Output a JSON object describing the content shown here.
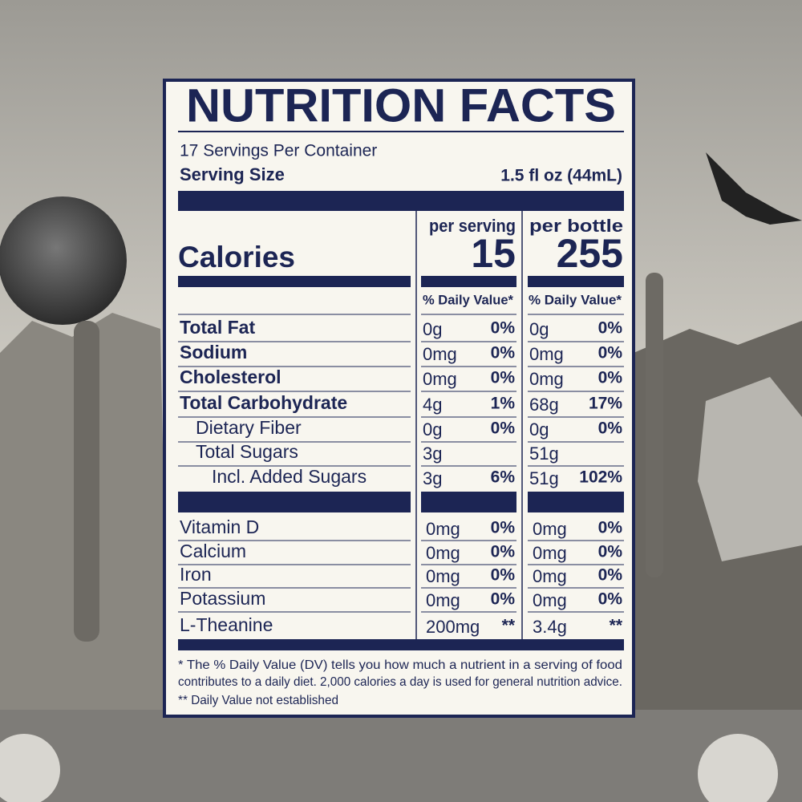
{
  "title": "NUTRITION FACTS",
  "servings_per_container": "17 Servings Per Container",
  "serving_size": {
    "label": "Serving Size",
    "value": "1.5 fl oz (44mL)"
  },
  "calories": {
    "label": "Calories",
    "columns": [
      {
        "heading": "per serving",
        "value": "15"
      },
      {
        "heading": "per bottle",
        "value": "255"
      }
    ]
  },
  "dv_heading": "% Daily Value*",
  "nutrients": [
    {
      "name": "Total Fat",
      "bold": true,
      "indent": 0,
      "serving": {
        "amount": "0g",
        "dv": "0%"
      },
      "bottle": {
        "amount": "0g",
        "dv": "0%"
      }
    },
    {
      "name": "Sodium",
      "bold": true,
      "indent": 0,
      "serving": {
        "amount": "0mg",
        "dv": "0%"
      },
      "bottle": {
        "amount": "0mg",
        "dv": "0%"
      }
    },
    {
      "name": "Cholesterol",
      "bold": true,
      "indent": 0,
      "serving": {
        "amount": "0mg",
        "dv": "0%"
      },
      "bottle": {
        "amount": "0mg",
        "dv": "0%"
      }
    },
    {
      "name": "Total Carbohydrate",
      "bold": true,
      "indent": 0,
      "serving": {
        "amount": "4g",
        "dv": "1%"
      },
      "bottle": {
        "amount": "68g",
        "dv": "17%"
      }
    },
    {
      "name": "Dietary Fiber",
      "bold": false,
      "indent": 1,
      "serving": {
        "amount": "0g",
        "dv": "0%"
      },
      "bottle": {
        "amount": "0g",
        "dv": "0%"
      }
    },
    {
      "name": "Total Sugars",
      "bold": false,
      "indent": 1,
      "serving": {
        "amount": "3g",
        "dv": null
      },
      "bottle": {
        "amount": "51g",
        "dv": null
      }
    },
    {
      "name": "Incl. Added Sugars",
      "bold": false,
      "indent": 2,
      "serving": {
        "amount": "3g",
        "dv": "6%"
      },
      "bottle": {
        "amount": "51g",
        "dv": "102%"
      }
    }
  ],
  "micronutrients": [
    {
      "name": "Vitamin D",
      "serving": {
        "amount": "0mg",
        "dv": "0%"
      },
      "bottle": {
        "amount": "0mg",
        "dv": "0%"
      }
    },
    {
      "name": "Calcium",
      "serving": {
        "amount": "0mg",
        "dv": "0%"
      },
      "bottle": {
        "amount": "0mg",
        "dv": "0%"
      }
    },
    {
      "name": "Iron",
      "serving": {
        "amount": "0mg",
        "dv": "0%"
      },
      "bottle": {
        "amount": "0mg",
        "dv": "0%"
      }
    },
    {
      "name": "Potassium",
      "serving": {
        "amount": "0mg",
        "dv": "0%"
      },
      "bottle": {
        "amount": "0mg",
        "dv": "0%"
      }
    },
    {
      "name": "L-Theanine",
      "serving": {
        "amount": "200mg",
        "dv": "**"
      },
      "bottle": {
        "amount": "3.4g",
        "dv": "**"
      }
    }
  ],
  "footnotes": [
    "* The % Daily Value (DV) tells you how much a nutrient in a serving of food",
    "contributes to a daily diet. 2,000 calories a day is used for general nutrition advice.",
    "** Daily Value not established"
  ]
}
